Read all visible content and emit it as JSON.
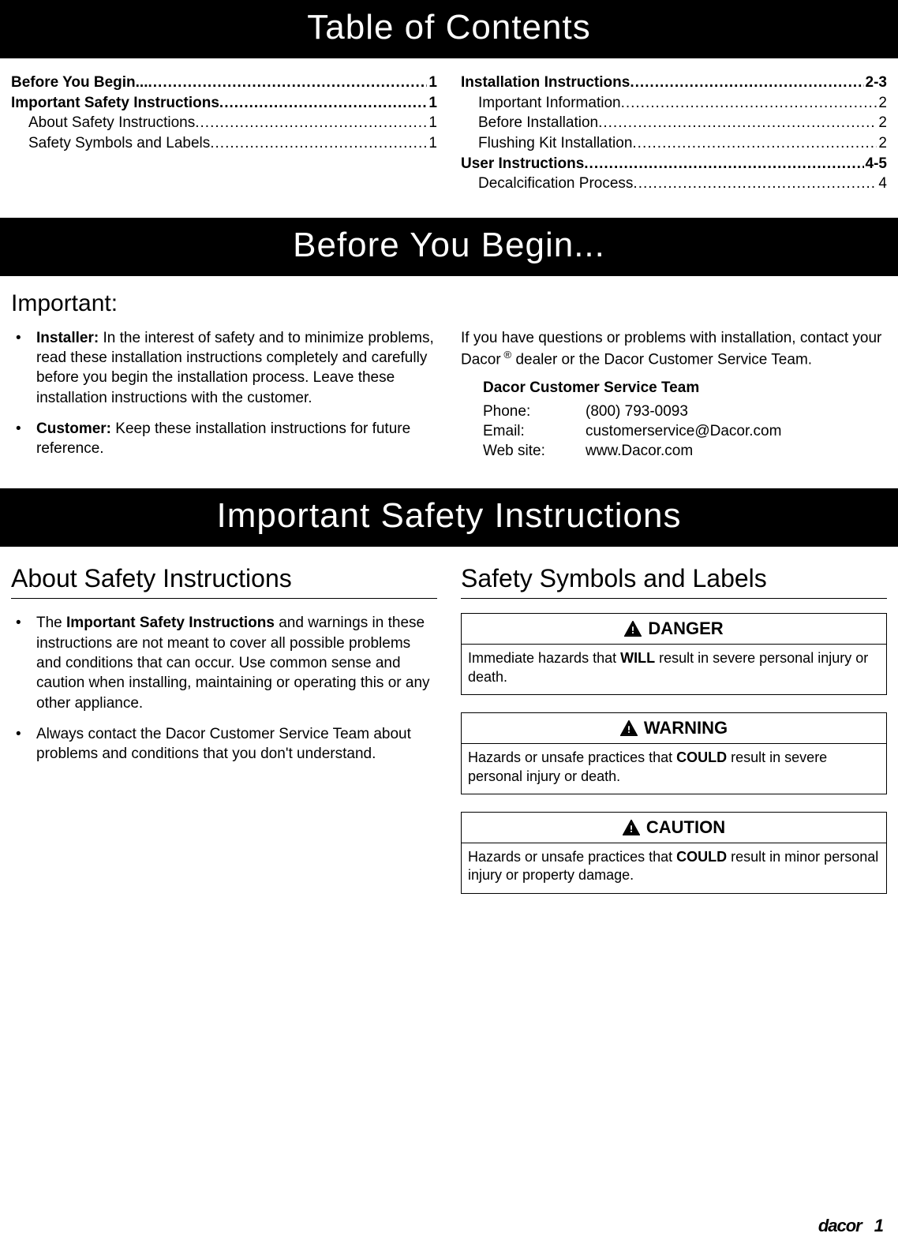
{
  "colors": {
    "header_bg": "#000000",
    "header_text": "#ffffff",
    "body_text": "#000000",
    "page_bg": "#ffffff",
    "rule": "#000000"
  },
  "typography": {
    "header_fontsize": 44,
    "subsection_fontsize": 32,
    "body_fontsize": 19,
    "safety_head_fontsize": 22
  },
  "headers": {
    "toc": "Table of Contents",
    "before": "Before You Begin...",
    "safety": "Important Safety Instructions"
  },
  "toc": {
    "left": [
      {
        "label": "Before You Begin... ",
        "page": "1",
        "bold": true,
        "sub": false
      },
      {
        "label": "Important Safety Instructions ",
        "page": "1",
        "bold": true,
        "sub": false
      },
      {
        "label": "About Safety Instructions",
        "page": "1",
        "bold": false,
        "sub": true
      },
      {
        "label": "Safety Symbols and Labels ",
        "page": "1",
        "bold": false,
        "sub": true
      }
    ],
    "right": [
      {
        "label": "Installation Instructions",
        "page": "2-3",
        "bold": true,
        "sub": false
      },
      {
        "label": "Important Information",
        "page": "2",
        "bold": false,
        "sub": true
      },
      {
        "label": "Before Installation ",
        "page": "2",
        "bold": false,
        "sub": true
      },
      {
        "label": "Flushing Kit Installation",
        "page": "2",
        "bold": false,
        "sub": true
      },
      {
        "label": "User Instructions",
        "page": "4-5",
        "bold": true,
        "sub": false
      },
      {
        "label": "Decalcification Process",
        "page": "4",
        "bold": false,
        "sub": true
      }
    ]
  },
  "before_section": {
    "important_label": "Important:",
    "bullets": [
      {
        "lead": "Installer:",
        "text": " In the interest of safety and to minimize problems, read these installation instructions completely and carefully before you begin the installation process. Leave these installation instructions with the customer."
      },
      {
        "lead": "Customer:",
        "text": " Keep these installation instructions for future reference."
      }
    ],
    "right_para_pre": "If you have questions or problems with installation, contact your Dacor",
    "right_para_post": " dealer or the Dacor Customer Service Team.",
    "contact_heading": "Dacor Customer Service Team",
    "contact": [
      {
        "key": "Phone:",
        "value": "(800) 793-0093"
      },
      {
        "key": "Email:",
        "value": "customerservice@Dacor.com"
      },
      {
        "key": "Web site:",
        "value": "www.Dacor.com"
      }
    ]
  },
  "safety_section": {
    "about_title": "About Safety Instructions",
    "about_bullets": [
      {
        "pre": "The ",
        "bold": "Important Safety Instructions",
        "post": " and warnings in these instructions are not meant to cover all possible problems and conditions that can occur. Use common sense and caution when installing, maintaining or operating this or any other appliance."
      },
      {
        "pre": "",
        "bold": "",
        "post": "Always contact the Dacor Customer Service Team about problems and conditions that you don't understand."
      }
    ],
    "labels_title": "Safety Symbols and Labels",
    "boxes": [
      {
        "head": "DANGER",
        "body_pre": "Immediate hazards that ",
        "body_bold": "WILL",
        "body_post": " result in severe personal injury or death."
      },
      {
        "head": "WARNING",
        "body_pre": "Hazards or unsafe practices that ",
        "body_bold": "COULD",
        "body_post": " result in severe personal injury or death."
      },
      {
        "head": "CAUTION",
        "body_pre": "Hazards or unsafe practices that ",
        "body_bold": "COULD",
        "body_post": " result in minor personal injury or property damage."
      }
    ]
  },
  "footer": {
    "brand": "dacor",
    "page": "1"
  }
}
